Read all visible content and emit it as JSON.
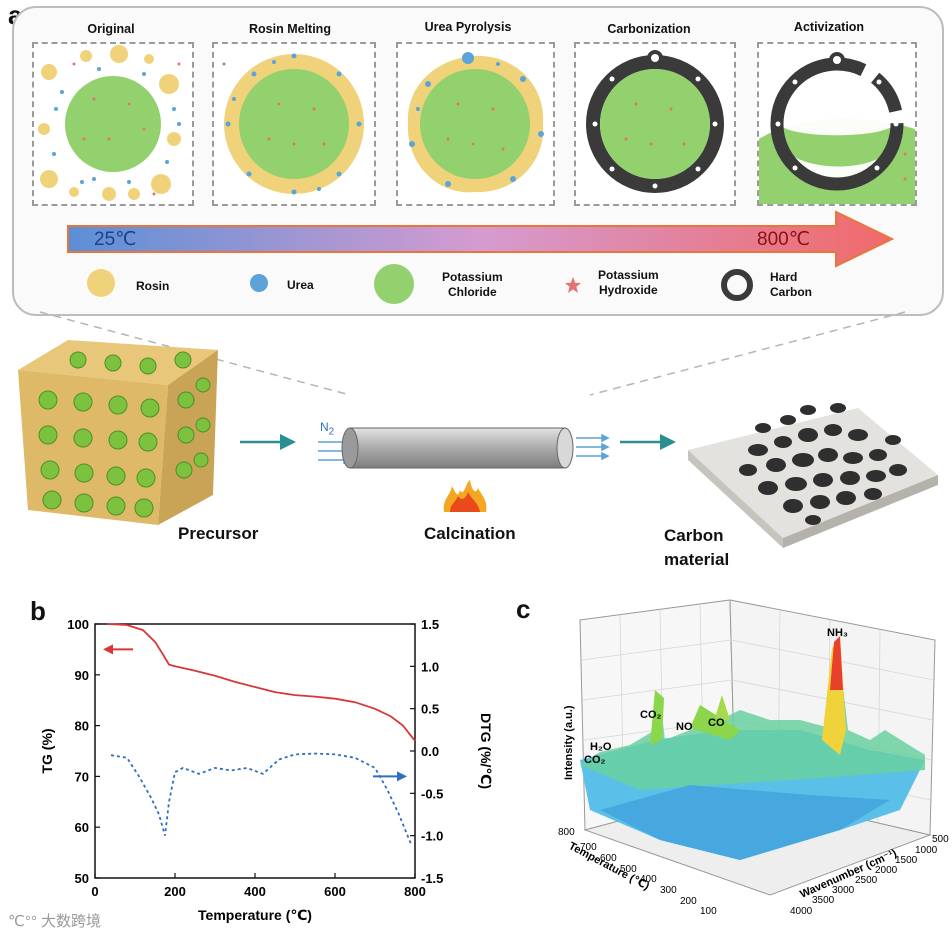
{
  "panel_a": {
    "letter": "a",
    "stages": [
      "Original",
      "Rosin Melting",
      "Urea Pyrolysis",
      "Carbonization",
      "Activization"
    ],
    "arrow": {
      "start_temp": "25℃",
      "end_temp": "800℃"
    },
    "legend": {
      "rosin": "Rosin",
      "urea": "Urea",
      "kcl": [
        "Potassium",
        "Chloride"
      ],
      "koh": [
        "Potassium",
        "Hydroxide"
      ],
      "hard_carbon": [
        "Hard",
        "Carbon"
      ]
    },
    "process": {
      "precursor": "Precursor",
      "n2": "N",
      "n2_sub": "2",
      "calcination": "Calcination",
      "carbon_material": [
        "Carbon",
        "material"
      ]
    }
  },
  "panel_b": {
    "letter": "b"
  },
  "panel_c": {
    "letter": "c",
    "zlabel": "Intensity (a.u.)",
    "ylabel": "Temperature (℃)",
    "xlabel": "Wavenumber (cm⁻¹)",
    "temp_ticks": [
      "800",
      "700",
      "600",
      "500",
      "400",
      "300",
      "200",
      "100"
    ],
    "wn_ticks": [
      "500",
      "1000",
      "1500",
      "2000",
      "2500",
      "3000",
      "3500",
      "4000"
    ],
    "peaks": [
      "H₂O",
      "CO₂",
      "CO₂",
      "NO",
      "CO",
      "NH₃"
    ]
  },
  "watermark": "大数跨境",
  "colors": {
    "rosin": "#f0d27a",
    "urea": "#5ba3d8",
    "kcl": "#93d06e",
    "koh": "#e57373",
    "carbon": "#3a3a3a",
    "tg": "#d93636",
    "dtg": "#2e6fc0"
  },
  "chart_data": {
    "type": "line",
    "title": "",
    "xlabel": "Temperature (℃)",
    "ylabel": "TG (%)",
    "y2label": "DTG (%/℃)",
    "xlim": [
      0,
      800
    ],
    "ylim": [
      50,
      100
    ],
    "y2lim": [
      -1.5,
      1.5
    ],
    "xticks": [
      0,
      200,
      400,
      600,
      800
    ],
    "yticks": [
      50,
      60,
      70,
      80,
      90,
      100
    ],
    "y2ticks": [
      -1.5,
      -1.0,
      -0.5,
      0.0,
      0.5,
      1.0,
      1.5
    ],
    "series": [
      {
        "name": "TG",
        "axis": "left",
        "x": [
          30,
          80,
          120,
          150,
          170,
          185,
          200,
          250,
          300,
          350,
          400,
          450,
          500,
          550,
          600,
          650,
          700,
          740,
          770,
          790,
          800
        ],
        "values": [
          100,
          99.8,
          98.8,
          96.5,
          94,
          92,
          91.7,
          90.8,
          89.8,
          88.6,
          87.6,
          86.6,
          86,
          85.7,
          85.3,
          84.6,
          83.3,
          81.8,
          80,
          78,
          77
        ]
      },
      {
        "name": "DTG",
        "axis": "right",
        "x": [
          40,
          80,
          110,
          140,
          160,
          175,
          185,
          200,
          220,
          260,
          300,
          340,
          380,
          420,
          460,
          500,
          550,
          600,
          650,
          700,
          730,
          760,
          790
        ],
        "values": [
          -0.05,
          -0.08,
          -0.3,
          -0.55,
          -0.75,
          -1.0,
          -0.6,
          -0.25,
          -0.2,
          -0.27,
          -0.2,
          -0.23,
          -0.2,
          -0.27,
          -0.1,
          -0.04,
          -0.03,
          -0.04,
          -0.08,
          -0.2,
          -0.45,
          -0.75,
          -1.1
        ]
      }
    ]
  }
}
